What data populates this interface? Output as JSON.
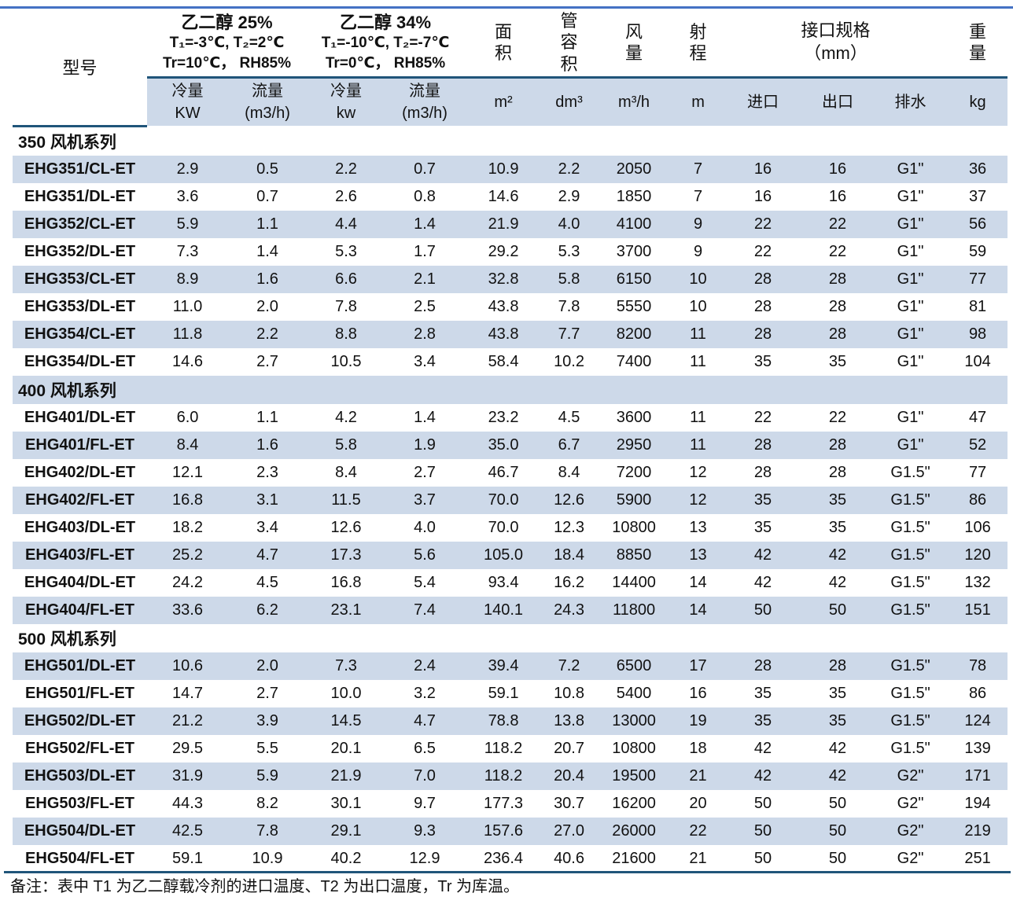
{
  "colors": {
    "top_rule": "#4472C4",
    "dark_rule": "#20557A",
    "stripe": "#CDD9E9"
  },
  "header": {
    "model": "型号",
    "glycol_groups": [
      {
        "title": "乙二醇 25%",
        "temps": "T₁=-3℃, T₂=2℃",
        "humidity": "Tr=10℃， RH85%"
      },
      {
        "title": "乙二醇 34%",
        "temps": "T₁=-10℃, T₂=-7℃",
        "humidity": "Tr=0℃， RH85%"
      }
    ],
    "area": "面积",
    "tube_volume": "管容积",
    "air_flow": "风量",
    "throw_range": "射程",
    "interface_line1": "接口规格",
    "interface_line2": "（mm）",
    "weight": "重量",
    "units": {
      "cooling25_label": "冷量",
      "cooling25_unit": "KW",
      "flow25_label": "流量",
      "flow25_unit": "(m3/h)",
      "cooling34_label": "冷量",
      "cooling34_unit": "kw",
      "flow34_label": "流量",
      "flow34_unit": "(m3/h)",
      "area": "m²",
      "tube_volume": "dm³",
      "air_flow": "m³/h",
      "throw_range": "m",
      "inlet": "进口",
      "outlet": "出口",
      "drain": "排水",
      "weight": "kg"
    }
  },
  "sections": [
    {
      "title": "350 风机系列",
      "rows": [
        {
          "model": "EHG351/CL-ET",
          "values": [
            "2.9",
            "0.5",
            "2.2",
            "0.7",
            "10.9",
            "2.2",
            "2050",
            "7",
            "16",
            "16",
            "G1\"",
            "36"
          ]
        },
        {
          "model": "EHG351/DL-ET",
          "values": [
            "3.6",
            "0.7",
            "2.6",
            "0.8",
            "14.6",
            "2.9",
            "1850",
            "7",
            "16",
            "16",
            "G1\"",
            "37"
          ]
        },
        {
          "model": "EHG352/CL-ET",
          "values": [
            "5.9",
            "1.1",
            "4.4",
            "1.4",
            "21.9",
            "4.0",
            "4100",
            "9",
            "22",
            "22",
            "G1\"",
            "56"
          ]
        },
        {
          "model": "EHG352/DL-ET",
          "values": [
            "7.3",
            "1.4",
            "5.3",
            "1.7",
            "29.2",
            "5.3",
            "3700",
            "9",
            "22",
            "22",
            "G1\"",
            "59"
          ]
        },
        {
          "model": "EHG353/CL-ET",
          "values": [
            "8.9",
            "1.6",
            "6.6",
            "2.1",
            "32.8",
            "5.8",
            "6150",
            "10",
            "28",
            "28",
            "G1\"",
            "77"
          ]
        },
        {
          "model": "EHG353/DL-ET",
          "values": [
            "11.0",
            "2.0",
            "7.8",
            "2.5",
            "43.8",
            "7.8",
            "5550",
            "10",
            "28",
            "28",
            "G1\"",
            "81"
          ]
        },
        {
          "model": "EHG354/CL-ET",
          "values": [
            "11.8",
            "2.2",
            "8.8",
            "2.8",
            "43.8",
            "7.7",
            "8200",
            "11",
            "28",
            "28",
            "G1\"",
            "98"
          ]
        },
        {
          "model": "EHG354/DL-ET",
          "values": [
            "14.6",
            "2.7",
            "10.5",
            "3.4",
            "58.4",
            "10.2",
            "7400",
            "11",
            "35",
            "35",
            "G1\"",
            "104"
          ]
        }
      ]
    },
    {
      "title": "400 风机系列",
      "rows": [
        {
          "model": "EHG401/DL-ET",
          "values": [
            "6.0",
            "1.1",
            "4.2",
            "1.4",
            "23.2",
            "4.5",
            "3600",
            "11",
            "22",
            "22",
            "G1\"",
            "47"
          ]
        },
        {
          "model": "EHG401/FL-ET",
          "values": [
            "8.4",
            "1.6",
            "5.8",
            "1.9",
            "35.0",
            "6.7",
            "2950",
            "11",
            "28",
            "28",
            "G1\"",
            "52"
          ]
        },
        {
          "model": "EHG402/DL-ET",
          "values": [
            "12.1",
            "2.3",
            "8.4",
            "2.7",
            "46.7",
            "8.4",
            "7200",
            "12",
            "28",
            "28",
            "G1.5\"",
            "77"
          ]
        },
        {
          "model": "EHG402/FL-ET",
          "values": [
            "16.8",
            "3.1",
            "11.5",
            "3.7",
            "70.0",
            "12.6",
            "5900",
            "12",
            "35",
            "35",
            "G1.5\"",
            "86"
          ]
        },
        {
          "model": "EHG403/DL-ET",
          "values": [
            "18.2",
            "3.4",
            "12.6",
            "4.0",
            "70.0",
            "12.3",
            "10800",
            "13",
            "35",
            "35",
            "G1.5\"",
            "106"
          ]
        },
        {
          "model": "EHG403/FL-ET",
          "values": [
            "25.2",
            "4.7",
            "17.3",
            "5.6",
            "105.0",
            "18.4",
            "8850",
            "13",
            "42",
            "42",
            "G1.5\"",
            "120"
          ]
        },
        {
          "model": "EHG404/DL-ET",
          "values": [
            "24.2",
            "4.5",
            "16.8",
            "5.4",
            "93.4",
            "16.2",
            "14400",
            "14",
            "42",
            "42",
            "G1.5\"",
            "132"
          ]
        },
        {
          "model": "EHG404/FL-ET",
          "values": [
            "33.6",
            "6.2",
            "23.1",
            "7.4",
            "140.1",
            "24.3",
            "11800",
            "14",
            "50",
            "50",
            "G1.5\"",
            "151"
          ]
        }
      ]
    },
    {
      "title": "500 风机系列",
      "rows": [
        {
          "model": "EHG501/DL-ET",
          "values": [
            "10.6",
            "2.0",
            "7.3",
            "2.4",
            "39.4",
            "7.2",
            "6500",
            "17",
            "28",
            "28",
            "G1.5\"",
            "78"
          ]
        },
        {
          "model": "EHG501/FL-ET",
          "values": [
            "14.7",
            "2.7",
            "10.0",
            "3.2",
            "59.1",
            "10.8",
            "5400",
            "16",
            "35",
            "35",
            "G1.5\"",
            "86"
          ]
        },
        {
          "model": "EHG502/DL-ET",
          "values": [
            "21.2",
            "3.9",
            "14.5",
            "4.7",
            "78.8",
            "13.8",
            "13000",
            "19",
            "35",
            "35",
            "G1.5\"",
            "124"
          ]
        },
        {
          "model": "EHG502/FL-ET",
          "values": [
            "29.5",
            "5.5",
            "20.1",
            "6.5",
            "118.2",
            "20.7",
            "10800",
            "18",
            "42",
            "42",
            "G1.5\"",
            "139"
          ]
        },
        {
          "model": "EHG503/DL-ET",
          "values": [
            "31.9",
            "5.9",
            "21.9",
            "7.0",
            "118.2",
            "20.4",
            "19500",
            "21",
            "42",
            "42",
            "G2\"",
            "171"
          ]
        },
        {
          "model": "EHG503/FL-ET",
          "values": [
            "44.3",
            "8.2",
            "30.1",
            "9.7",
            "177.3",
            "30.7",
            "16200",
            "20",
            "50",
            "50",
            "G2\"",
            "194"
          ]
        },
        {
          "model": "EHG504/DL-ET",
          "values": [
            "42.5",
            "7.8",
            "29.1",
            "9.3",
            "157.6",
            "27.0",
            "26000",
            "22",
            "50",
            "50",
            "G2\"",
            "219"
          ]
        },
        {
          "model": "EHG504/FL-ET",
          "values": [
            "59.1",
            "10.9",
            "40.2",
            "12.9",
            "236.4",
            "40.6",
            "21600",
            "21",
            "50",
            "50",
            "G2\"",
            "251"
          ]
        }
      ]
    }
  ],
  "note": "备注：表中 T1 为乙二醇载冷剂的进口温度、T2 为出口温度，Tr 为库温。"
}
